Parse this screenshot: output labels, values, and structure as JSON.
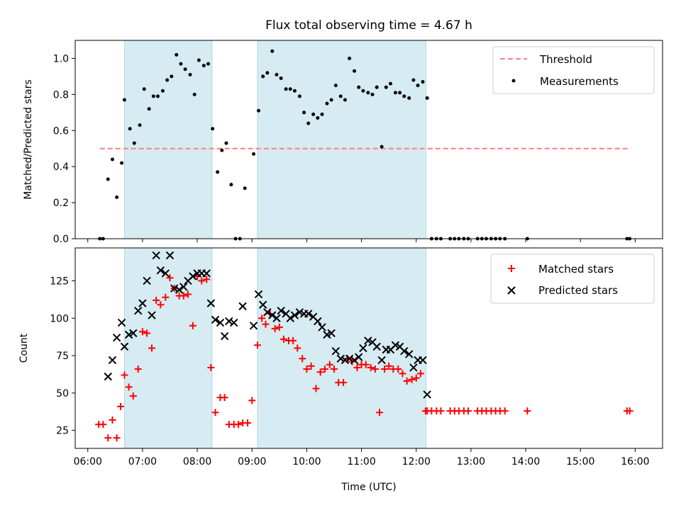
{
  "chart_data": [
    {
      "type": "scatter",
      "title": "Flux total observing time = 4.67 h",
      "xlabel": "",
      "ylabel": "Matched/Predicted stars",
      "xlim": [
        5.77,
        16.5
      ],
      "ylim": [
        0.0,
        1.1
      ],
      "yticks": [
        0.0,
        0.2,
        0.4,
        0.6,
        0.8,
        1.0
      ],
      "ytick_labels": [
        "0.0",
        "0.2",
        "0.4",
        "0.6",
        "0.8",
        "1.0"
      ],
      "shaded_intervals": [
        [
          6.67,
          8.27
        ],
        [
          9.1,
          12.18
        ]
      ],
      "legend": {
        "location": "upper right",
        "entries": [
          "Threshold",
          "Measurements"
        ]
      },
      "series": [
        {
          "name": "Threshold",
          "style": "dashed-line",
          "color": "#ff7f7f",
          "x": [
            6.22,
            15.92
          ],
          "y": [
            0.5,
            0.5
          ]
        },
        {
          "name": "Measurements",
          "style": "dot",
          "color": "#000000",
          "x": [
            6.22,
            6.28,
            6.37,
            6.45,
            6.53,
            6.62,
            6.67,
            6.77,
            6.85,
            6.95,
            7.03,
            7.12,
            7.2,
            7.28,
            7.37,
            7.45,
            7.53,
            7.62,
            7.7,
            7.78,
            7.87,
            7.95,
            8.03,
            8.12,
            8.2,
            8.28,
            8.37,
            8.45,
            8.53,
            8.62,
            8.7,
            8.78,
            8.87,
            9.03,
            9.12,
            9.2,
            9.28,
            9.37,
            9.45,
            9.53,
            9.62,
            9.7,
            9.78,
            9.87,
            9.95,
            10.03,
            10.12,
            10.2,
            10.28,
            10.37,
            10.45,
            10.53,
            10.62,
            10.7,
            10.78,
            10.87,
            10.95,
            11.03,
            11.12,
            11.2,
            11.28,
            11.37,
            11.45,
            11.53,
            11.62,
            11.7,
            11.78,
            11.87,
            11.95,
            12.03,
            12.12,
            12.2,
            12.28,
            12.37,
            12.45,
            12.62,
            12.7,
            12.78,
            12.87,
            12.95,
            13.12,
            13.2,
            13.28,
            13.37,
            13.45,
            13.53,
            13.62,
            14.03,
            15.85,
            15.9
          ],
          "y": [
            0.0,
            0.0,
            0.33,
            0.44,
            0.23,
            0.42,
            0.77,
            0.61,
            0.53,
            0.63,
            0.83,
            0.72,
            0.79,
            0.79,
            0.82,
            0.88,
            0.9,
            1.02,
            0.97,
            0.94,
            0.91,
            0.8,
            0.99,
            0.96,
            0.97,
            0.61,
            0.37,
            0.49,
            0.53,
            0.3,
            0.0,
            0.0,
            0.28,
            0.47,
            0.71,
            0.9,
            0.92,
            1.04,
            0.91,
            0.89,
            0.83,
            0.83,
            0.82,
            0.79,
            0.7,
            0.64,
            0.69,
            0.67,
            0.69,
            0.75,
            0.77,
            0.85,
            0.79,
            0.77,
            1.0,
            0.93,
            0.84,
            0.82,
            0.81,
            0.8,
            0.84,
            0.51,
            0.84,
            0.86,
            0.81,
            0.81,
            0.79,
            0.78,
            0.88,
            0.85,
            0.87,
            0.78,
            0.0,
            0.0,
            0.0,
            0.0,
            0.0,
            0.0,
            0.0,
            0.0,
            0.0,
            0.0,
            0.0,
            0.0,
            0.0,
            0.0,
            0.0,
            0.0,
            0.0,
            0.0
          ]
        }
      ]
    },
    {
      "type": "scatter",
      "title": "",
      "xlabel": "Time (UTC)",
      "ylabel": "Count",
      "xlim": [
        5.77,
        16.5
      ],
      "ylim": [
        13,
        147
      ],
      "xticks": [
        6,
        7,
        8,
        9,
        10,
        11,
        12,
        13,
        14,
        15,
        16
      ],
      "xtick_labels": [
        "06:00",
        "07:00",
        "08:00",
        "09:00",
        "10:00",
        "11:00",
        "12:00",
        "13:00",
        "14:00",
        "15:00",
        "16:00"
      ],
      "yticks": [
        25,
        50,
        75,
        100,
        125
      ],
      "ytick_labels": [
        "25",
        "50",
        "75",
        "100",
        "125"
      ],
      "shaded_intervals": [
        [
          6.67,
          8.27
        ],
        [
          9.1,
          12.18
        ]
      ],
      "legend": {
        "location": "upper right",
        "entries": [
          "Matched stars",
          "Predicted stars"
        ]
      },
      "series": [
        {
          "name": "Matched stars",
          "marker": "plus",
          "color": "#ff0000",
          "x": [
            6.2,
            6.28,
            6.37,
            6.45,
            6.53,
            6.6,
            6.67,
            6.75,
            6.83,
            6.92,
            7.0,
            7.08,
            7.17,
            7.25,
            7.33,
            7.42,
            7.5,
            7.58,
            7.67,
            7.75,
            7.83,
            7.92,
            8.0,
            8.08,
            8.17,
            8.25,
            8.33,
            8.42,
            8.5,
            8.58,
            8.67,
            8.75,
            8.83,
            8.92,
            9.0,
            9.1,
            9.18,
            9.25,
            9.33,
            9.42,
            9.5,
            9.58,
            9.67,
            9.75,
            9.83,
            9.92,
            10.0,
            10.08,
            10.17,
            10.25,
            10.33,
            10.42,
            10.5,
            10.58,
            10.67,
            10.75,
            10.83,
            10.92,
            11.0,
            11.08,
            11.17,
            11.25,
            11.33,
            11.42,
            11.5,
            11.58,
            11.67,
            11.75,
            11.83,
            11.92,
            12.0,
            12.08,
            12.17,
            12.2,
            12.28,
            12.37,
            12.45,
            12.62,
            12.7,
            12.78,
            12.87,
            12.95,
            13.12,
            13.2,
            13.28,
            13.37,
            13.45,
            13.53,
            13.62,
            14.03,
            15.85,
            15.9
          ],
          "y": [
            29,
            29,
            20,
            32,
            20,
            41,
            62,
            54,
            48,
            66,
            91,
            90,
            80,
            112,
            109,
            114,
            127,
            120,
            115,
            115,
            116,
            95,
            128,
            125,
            126,
            67,
            37,
            47,
            47,
            29,
            29,
            29,
            30,
            30,
            45,
            82,
            100,
            96,
            103,
            93,
            94,
            86,
            85,
            85,
            80,
            73,
            66,
            68,
            53,
            64,
            66,
            69,
            66,
            57,
            57,
            73,
            71,
            67,
            69,
            69,
            67,
            66,
            37,
            66,
            68,
            66,
            66,
            63,
            58,
            59,
            60,
            63,
            38,
            38,
            38,
            38,
            38,
            38,
            38,
            38,
            38,
            38,
            38,
            38,
            38,
            38,
            38,
            38,
            38,
            38,
            38,
            38
          ]
        },
        {
          "name": "Predicted stars",
          "marker": "x",
          "color": "#000000",
          "x": [
            6.37,
            6.45,
            6.53,
            6.62,
            6.67,
            6.75,
            6.83,
            6.92,
            7.0,
            7.08,
            7.17,
            7.25,
            7.33,
            7.42,
            7.5,
            7.58,
            7.67,
            7.75,
            7.83,
            7.92,
            8.0,
            8.08,
            8.17,
            8.25,
            8.33,
            8.42,
            8.5,
            8.58,
            8.67,
            8.83,
            9.03,
            9.12,
            9.2,
            9.28,
            9.37,
            9.45,
            9.53,
            9.62,
            9.7,
            9.78,
            9.87,
            9.95,
            10.03,
            10.12,
            10.2,
            10.28,
            10.37,
            10.45,
            10.53,
            10.62,
            10.7,
            10.78,
            10.87,
            10.95,
            11.03,
            11.12,
            11.2,
            11.28,
            11.37,
            11.45,
            11.53,
            11.62,
            11.7,
            11.78,
            11.87,
            11.95,
            12.03,
            12.12,
            12.2
          ],
          "y": [
            61,
            72,
            87,
            97,
            81,
            89,
            90,
            105,
            110,
            125,
            102,
            142,
            132,
            130,
            142,
            120,
            119,
            121,
            125,
            128,
            130,
            130,
            130,
            110,
            99,
            97,
            88,
            98,
            97,
            108,
            95,
            116,
            109,
            104,
            102,
            100,
            105,
            103,
            100,
            102,
            104,
            103,
            103,
            101,
            98,
            94,
            89,
            90,
            78,
            73,
            72,
            73,
            72,
            74,
            80,
            85,
            84,
            81,
            72,
            79,
            79,
            82,
            81,
            78,
            76,
            67,
            72,
            72,
            49
          ]
        }
      ]
    }
  ]
}
